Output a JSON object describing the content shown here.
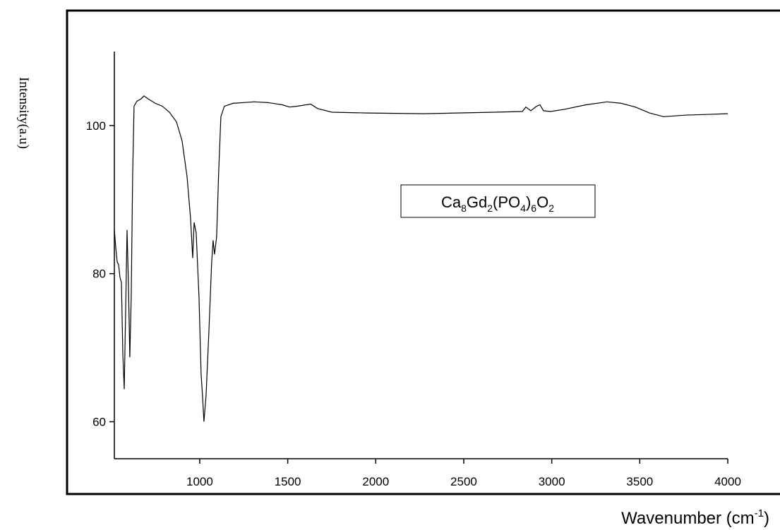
{
  "chart_data": {
    "type": "line",
    "y_label": "Intensity(a.u)",
    "x_label": [
      "Wavenumber (cm",
      "-1",
      ")"
    ],
    "annotation": [
      "Ca",
      "8",
      "Gd",
      "2",
      "(PO",
      "4",
      ")",
      "6",
      "O",
      "2"
    ],
    "xlim": [
      515,
      4000
    ],
    "xticks": [
      1000,
      1500,
      2000,
      2500,
      3000,
      3500,
      4000
    ],
    "ylim": [
      55,
      110
    ],
    "yticks": [
      60,
      80,
      100
    ],
    "grid": false,
    "series": [
      {
        "name": null,
        "color": "#000000",
        "x": [
          515,
          523,
          531,
          539,
          547,
          555,
          563,
          571,
          579,
          587,
          595,
          603,
          611,
          619,
          627,
          643,
          667,
          683,
          707,
          748,
          788,
          828,
          868,
          900,
          928,
          948,
          960,
          968,
          980,
          996,
          1008,
          1016,
          1024,
          1036,
          1052,
          1068,
          1076,
          1084,
          1096,
          1108,
          1120,
          1140,
          1189,
          1309,
          1389,
          1470,
          1510,
          1550,
          1630,
          1670,
          1751,
          1951,
          2272,
          2673,
          2833,
          2853,
          2881,
          2913,
          2933,
          2953,
          2994,
          3074,
          3194,
          3315,
          3395,
          3475,
          3555,
          3636,
          3756,
          3876,
          4000
        ],
        "values": [
          85.9,
          83.5,
          81.6,
          81.2,
          79.5,
          78.8,
          69.2,
          64.4,
          75,
          85.9,
          78.8,
          68.7,
          76.9,
          93.1,
          102.6,
          103.3,
          103.6,
          104,
          103.6,
          103,
          102.6,
          101.8,
          100.5,
          97.9,
          93.1,
          87.4,
          82.1,
          86.9,
          85.5,
          76.9,
          66.4,
          63.5,
          60,
          63.5,
          72.1,
          81.6,
          84.5,
          82.6,
          85,
          94,
          101.2,
          102.6,
          103,
          103.2,
          103.1,
          102.8,
          102.5,
          102.6,
          102.9,
          102.3,
          101.8,
          101.7,
          101.6,
          101.8,
          101.9,
          102.5,
          102,
          102.6,
          102.8,
          102,
          101.9,
          102.2,
          102.8,
          103.2,
          103,
          102.5,
          101.7,
          101.2,
          101.4,
          101.5,
          101.6
        ]
      }
    ]
  }
}
